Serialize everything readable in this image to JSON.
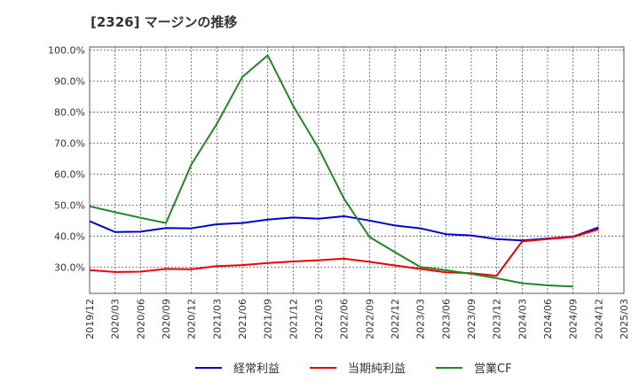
{
  "chart_data": {
    "type": "line",
    "title": "[2326]  マージンの推移",
    "x": [
      "2019/12",
      "2020/03",
      "2020/06",
      "2020/09",
      "2020/12",
      "2021/03",
      "2021/06",
      "2021/09",
      "2021/12",
      "2022/03",
      "2022/06",
      "2022/09",
      "2022/12",
      "2023/03",
      "2023/06",
      "2023/09",
      "2023/12",
      "2024/03",
      "2024/06",
      "2024/09",
      "2024/12",
      "2025/03"
    ],
    "y_ticks": [
      "100.0%",
      "90.0%",
      "80.0%",
      "70.0%",
      "60.0%",
      "50.0%",
      "40.0%",
      "30.0%"
    ],
    "ylim": [
      21.5,
      101
    ],
    "grid": true,
    "legend_position": "bottom",
    "series": [
      {
        "name": "経常利益",
        "color": "#0000cc",
        "values": [
          44.8,
          41.3,
          41.4,
          42.6,
          42.5,
          43.8,
          44.2,
          45.3,
          46.0,
          45.6,
          46.4,
          45.0,
          43.4,
          42.5,
          40.6,
          40.2,
          39.0,
          38.6,
          39.2,
          39.8,
          42.8,
          null
        ]
      },
      {
        "name": "当期純利益",
        "color": "#ee0000",
        "values": [
          29.0,
          28.4,
          28.5,
          29.4,
          29.3,
          30.3,
          30.6,
          31.3,
          31.8,
          32.2,
          32.7,
          31.7,
          30.5,
          29.4,
          28.3,
          28.0,
          27.2,
          38.3,
          39.0,
          39.7,
          42.2,
          null
        ]
      },
      {
        "name": "営業CF",
        "color": "#228822",
        "values": [
          49.6,
          47.7,
          45.9,
          44.2,
          63.1,
          76.2,
          91.3,
          98.3,
          82.0,
          68.3,
          52.0,
          39.7,
          34.8,
          30.0,
          29.0,
          27.8,
          26.4,
          24.8,
          24.1,
          23.7,
          null,
          null
        ]
      }
    ]
  }
}
